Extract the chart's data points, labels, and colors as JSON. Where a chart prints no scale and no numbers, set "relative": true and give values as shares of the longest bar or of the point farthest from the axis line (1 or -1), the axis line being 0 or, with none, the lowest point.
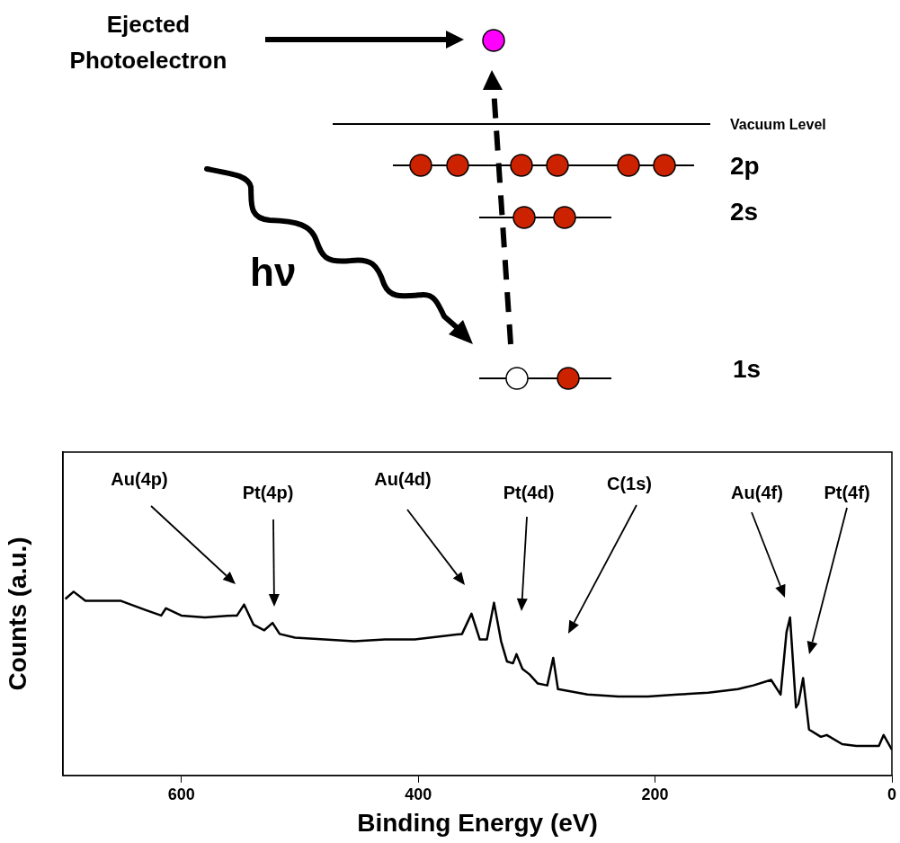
{
  "chart_data": {
    "type": "line",
    "xlabel": "Binding Energy (eV)",
    "ylabel": "Counts (a.u.)",
    "x": [
      698,
      691,
      681,
      666,
      651,
      630,
      617,
      613,
      600,
      580,
      557,
      553,
      547,
      539,
      530,
      523,
      517,
      504,
      479,
      454,
      428,
      403,
      363,
      355,
      348,
      342,
      336,
      330,
      325,
      320,
      317,
      312,
      306,
      299,
      291,
      286,
      282,
      257,
      231,
      206,
      181,
      155,
      130,
      117,
      102,
      94,
      89,
      86,
      81,
      79,
      75,
      70,
      60,
      55,
      42,
      30,
      11,
      7,
      0
    ],
    "series": [
      {
        "color": "#000000",
        "values": [
          0.96,
          1.0,
          0.95,
          0.95,
          0.95,
          0.9,
          0.87,
          0.91,
          0.87,
          0.86,
          0.87,
          0.87,
          0.93,
          0.82,
          0.79,
          0.83,
          0.77,
          0.75,
          0.74,
          0.73,
          0.74,
          0.74,
          0.77,
          0.88,
          0.74,
          0.74,
          0.94,
          0.73,
          0.62,
          0.61,
          0.66,
          0.58,
          0.55,
          0.5,
          0.49,
          0.64,
          0.47,
          0.44,
          0.43,
          0.43,
          0.44,
          0.45,
          0.47,
          0.49,
          0.52,
          0.44,
          0.78,
          0.86,
          0.37,
          0.39,
          0.53,
          0.25,
          0.21,
          0.22,
          0.17,
          0.16,
          0.16,
          0.22,
          0.14
        ]
      }
    ],
    "relative": true,
    "xlim": [
      700,
      0
    ],
    "xticks": [
      600,
      400,
      200,
      0
    ],
    "grid": false,
    "legend": false,
    "marker": "none",
    "annotations": [
      "Ejected Photoelectron",
      "Vacuum Level",
      "2p",
      "2s",
      "1s",
      "hν",
      "Au(4p)",
      "Pt(4p)",
      "Au(4d)",
      "Pt(4d)",
      "C(1s)",
      "Au(4f)",
      "Pt(4f)"
    ]
  }
}
